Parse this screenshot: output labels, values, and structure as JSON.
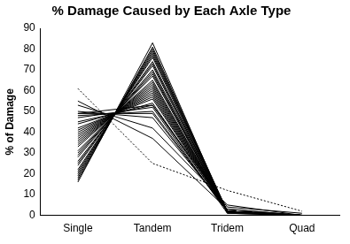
{
  "chart_data": {
    "type": "line",
    "title": "% Damage Caused by Each Axle Type",
    "y_label": "% of Damage",
    "categories": [
      "Single",
      "Tandem",
      "Tridem",
      "Quad"
    ],
    "color": "#000000",
    "ylim": [
      0,
      90
    ],
    "yticks": [
      0,
      10,
      20,
      30,
      40,
      50,
      60,
      70,
      80,
      90
    ],
    "grid": false,
    "series": [
      {
        "values": [
          16,
          83,
          1,
          0
        ]
      },
      {
        "values": [
          17,
          81,
          2,
          0
        ]
      },
      {
        "values": [
          18,
          80,
          1.5,
          0
        ]
      },
      {
        "values": [
          19,
          79,
          2,
          0.2
        ]
      },
      {
        "values": [
          20,
          78,
          2,
          0
        ]
      },
      {
        "values": [
          21,
          77,
          2,
          0
        ]
      },
      {
        "values": [
          22,
          76,
          1.5,
          0
        ]
      },
      {
        "values": [
          24,
          74,
          2,
          0
        ]
      },
      {
        "values": [
          25,
          73,
          2,
          0
        ]
      },
      {
        "values": [
          26,
          72,
          1.5,
          0
        ]
      },
      {
        "values": [
          28,
          70,
          2,
          0
        ]
      },
      {
        "values": [
          29,
          69,
          1.5,
          0
        ]
      },
      {
        "values": [
          30,
          68,
          2,
          0
        ]
      },
      {
        "values": [
          31,
          67,
          2,
          0
        ]
      },
      {
        "values": [
          33,
          65,
          2,
          0
        ]
      },
      {
        "values": [
          34,
          64,
          2,
          0
        ]
      },
      {
        "values": [
          35,
          63,
          2,
          0
        ]
      },
      {
        "values": [
          36,
          62,
          2,
          0
        ]
      },
      {
        "values": [
          37,
          61,
          2,
          0
        ]
      },
      {
        "values": [
          38,
          60,
          2,
          0
        ]
      },
      {
        "values": [
          39,
          59,
          2,
          0
        ]
      },
      {
        "values": [
          40,
          58,
          2,
          0
        ]
      },
      {
        "values": [
          41,
          57,
          2,
          0
        ]
      },
      {
        "values": [
          42,
          56,
          2,
          0
        ]
      },
      {
        "values": [
          44,
          54,
          2,
          0
        ]
      },
      {
        "values": [
          45,
          53,
          2,
          0
        ]
      },
      {
        "values": [
          47,
          52,
          1,
          0
        ]
      },
      {
        "values": [
          48,
          50,
          2,
          0
        ]
      },
      {
        "values": [
          49,
          49,
          2,
          0
        ]
      },
      {
        "values": [
          49,
          53,
          4,
          1
        ]
      },
      {
        "values": [
          50,
          47,
          3,
          0
        ]
      },
      {
        "values": [
          53,
          42,
          5,
          0
        ]
      },
      {
        "values": [
          55,
          37,
          3,
          0
        ]
      },
      {
        "values": [
          61,
          25,
          12,
          2
        ],
        "line_style": "dotted"
      }
    ]
  }
}
